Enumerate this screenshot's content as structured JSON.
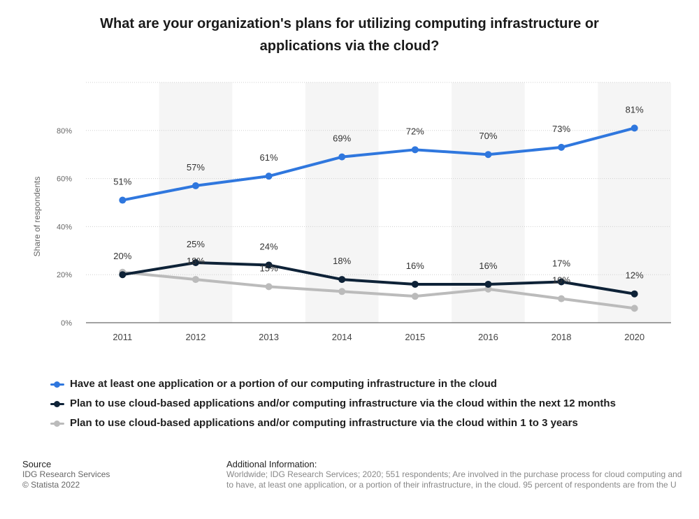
{
  "title_line1": "What are your organization's plans for utilizing computing infrastructure or",
  "title_line2": "applications via the cloud?",
  "chart_data": {
    "type": "line",
    "ylabel": "Share of respondents",
    "xlabel": "",
    "categories": [
      "2011",
      "2012",
      "2013",
      "2014",
      "2015",
      "2016",
      "2018",
      "2020"
    ],
    "ylim": [
      0,
      100
    ],
    "yticks": [
      "0%",
      "20%",
      "40%",
      "60%",
      "80%"
    ],
    "ytick_values": [
      0,
      20,
      40,
      60,
      80
    ],
    "grid": true,
    "legend_position": "bottom",
    "series": [
      {
        "name": "Have at least one application or a portion of our computing infrastructure in the cloud",
        "color": "#2f77de",
        "values": [
          51,
          57,
          61,
          69,
          72,
          70,
          73,
          81
        ],
        "labels": [
          "51%",
          "57%",
          "61%",
          "69%",
          "72%",
          "70%",
          "73%",
          "81%"
        ]
      },
      {
        "name": "Plan to use cloud-based applications and/or computing infrastructure via the cloud within the next 12 months",
        "color": "#0e2237",
        "values": [
          20,
          25,
          24,
          18,
          16,
          16,
          17,
          12
        ],
        "labels": [
          "20%",
          "25%",
          "24%",
          "18%",
          "16%",
          "16%",
          "17%",
          "12%"
        ]
      },
      {
        "name": "Plan to use cloud-based applications and/or computing infrastructure via the cloud within 1 to 3 years",
        "color": "#bbbbbb",
        "values": [
          21,
          18,
          15,
          13,
          11,
          14,
          10,
          6
        ],
        "labels": [
          "",
          "18%",
          "15%",
          "",
          "",
          "",
          "10%",
          ""
        ]
      }
    ]
  },
  "footer": {
    "source_heading": "Source",
    "source_line1": "IDG Research Services",
    "source_line2": "© Statista 2022",
    "info_heading": "Additional Information:",
    "info_line1": "Worldwide; IDG Research Services; 2020; 551 respondents; Are involved in the purchase process for cloud computing and",
    "info_line2": "to have, at least one application, or a portion of their infrastructure, in the cloud. 95 percent of respondents are from the U"
  }
}
